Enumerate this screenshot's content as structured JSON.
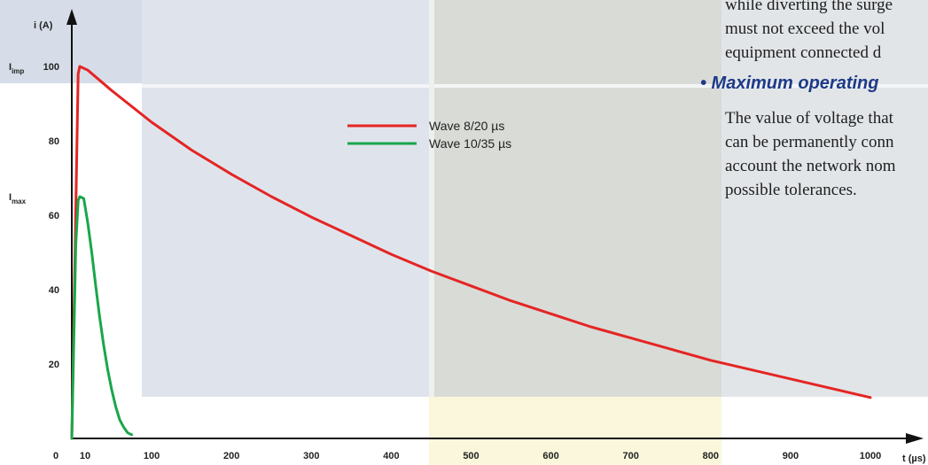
{
  "chart_data": {
    "type": "line",
    "title": "",
    "xlabel": "t (µs)",
    "ylabel": "i (A)",
    "xlim": [
      0,
      1050
    ],
    "ylim": [
      0,
      110
    ],
    "x_ticks": [
      0,
      10,
      100,
      200,
      300,
      400,
      500,
      600,
      700,
      800,
      900,
      1000
    ],
    "y_ticks": [
      20,
      40,
      60,
      80,
      100
    ],
    "y_marker_labels": [
      {
        "main": "I",
        "sub": "imp",
        "value": 100
      },
      {
        "main": "I",
        "sub": "max",
        "value": 65
      }
    ],
    "legend_position": "upper-center",
    "series": [
      {
        "name": "Wave 8/20 µs",
        "color": "#e42524",
        "x": [
          0,
          8,
          10,
          20,
          50,
          100,
          150,
          200,
          250,
          300,
          350,
          400,
          450,
          500,
          550,
          600,
          650,
          700,
          750,
          800,
          850,
          900,
          950,
          1000
        ],
        "y": [
          0,
          98,
          100,
          99,
          93.5,
          85,
          77.5,
          71,
          65,
          59.5,
          54.5,
          49.5,
          45,
          41,
          37,
          33.5,
          30,
          27,
          24,
          21,
          18.5,
          16,
          13.5,
          11
        ]
      },
      {
        "name": "Wave 10/35 µs",
        "color": "#1aa64a",
        "x": [
          0,
          5,
          8,
          10,
          15,
          20,
          25,
          30,
          35,
          40,
          45,
          50,
          55,
          60,
          65,
          70,
          75
        ],
        "y": [
          0,
          52,
          64,
          65,
          64.5,
          58,
          50,
          41,
          32.5,
          25,
          18.5,
          13,
          8.5,
          5,
          3,
          1.5,
          1
        ]
      }
    ]
  },
  "side_text": {
    "para1_lines": [
      "while diverting the surge",
      "must not exceed the vol",
      "equipment connected d"
    ],
    "heading": "• Maximum operating",
    "para2_lines": [
      "The value of voltage that",
      "can be permanently conn",
      "account the network nom",
      "possible tolerances."
    ]
  }
}
